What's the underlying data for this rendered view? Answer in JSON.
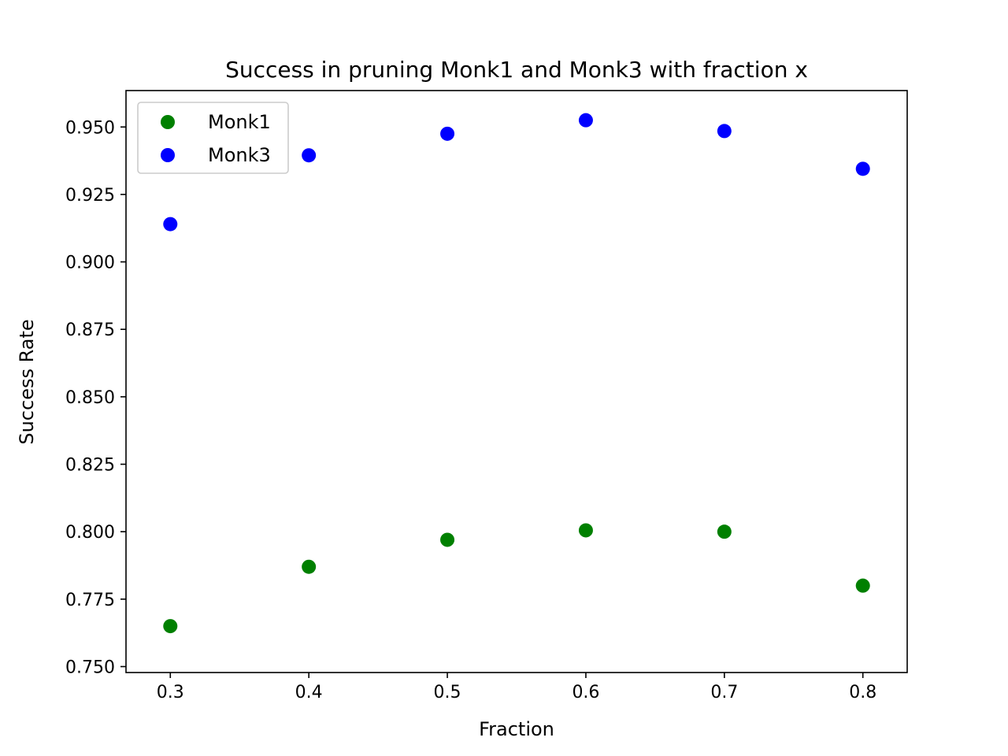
{
  "chart_data": {
    "type": "scatter",
    "title": "Success in pruning Monk1 and Monk3 with fraction x",
    "xlabel": "Fraction",
    "ylabel": "Success Rate",
    "xlim": [
      0.268,
      0.832
    ],
    "ylim": [
      0.7478,
      0.9635
    ],
    "xticks": [
      0.3,
      0.4,
      0.5,
      0.6,
      0.7,
      0.8
    ],
    "xtick_labels": [
      "0.3",
      "0.4",
      "0.5",
      "0.6",
      "0.7",
      "0.8"
    ],
    "yticks": [
      0.75,
      0.775,
      0.8,
      0.825,
      0.85,
      0.875,
      0.9,
      0.925,
      0.95
    ],
    "ytick_labels": [
      "0.750",
      "0.775",
      "0.800",
      "0.825",
      "0.850",
      "0.875",
      "0.900",
      "0.925",
      "0.950"
    ],
    "grid": false,
    "legend_position": "top-left",
    "series": [
      {
        "name": "Monk1",
        "color": "#008000",
        "x": [
          0.3,
          0.4,
          0.5,
          0.6,
          0.7,
          0.8
        ],
        "y": [
          0.765,
          0.787,
          0.797,
          0.8005,
          0.8,
          0.78
        ]
      },
      {
        "name": "Monk3",
        "color": "#0000ff",
        "x": [
          0.3,
          0.4,
          0.5,
          0.6,
          0.7,
          0.8
        ],
        "y": [
          0.914,
          0.9395,
          0.9475,
          0.9525,
          0.9485,
          0.9345
        ]
      }
    ]
  }
}
